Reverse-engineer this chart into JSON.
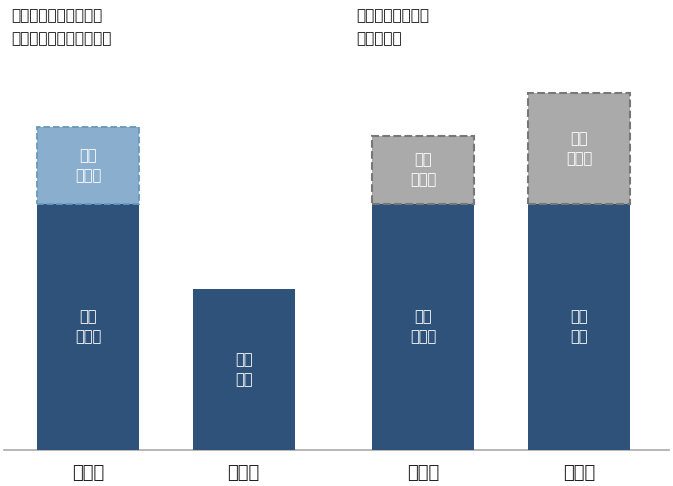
{
  "title_left": "このように比較すると\n購入価格が安く見えるが",
  "title_right": "実際はこのように\n比較すべき",
  "x_labels": [
    "内製品",
    "外製品",
    "内製品",
    "外製品"
  ],
  "var_costs": [
    5.8,
    0,
    5.8,
    5.8
  ],
  "fix_costs_bar1": 1.8,
  "purchase_bar2": 3.8,
  "fix_costs_bar3": 1.6,
  "purchase_bar4": 5.8,
  "fix_costs_bar4": 2.6,
  "dark_blue": "#2E527A",
  "light_blue": "#89AECE",
  "gray": "#AAAAAA",
  "background": "#FFFFFF",
  "positions": [
    0.7,
    2.0,
    3.5,
    4.8
  ],
  "bar_width": 0.85,
  "ylim": [
    0,
    10.5
  ],
  "xlim": [
    0.0,
    5.55
  ]
}
